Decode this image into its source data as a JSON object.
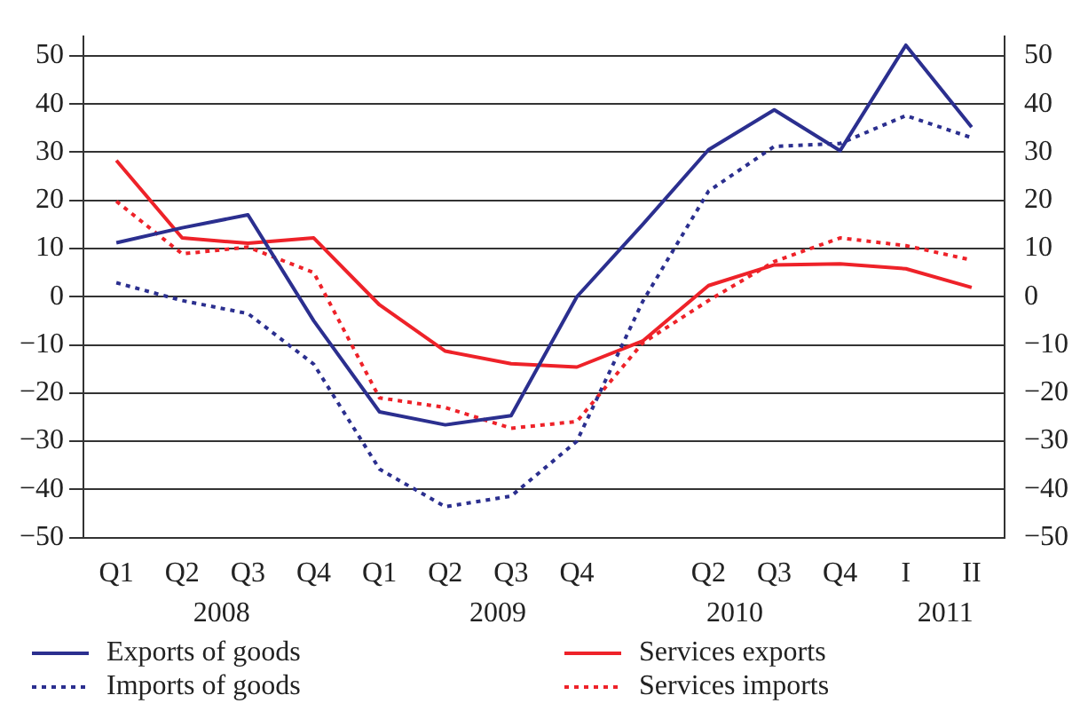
{
  "chart_data": {
    "type": "line",
    "categories": [
      "Q1",
      "Q2",
      "Q3",
      "Q4",
      "Q1",
      "Q2",
      "Q3",
      "Q4",
      null,
      "Q2",
      "Q3",
      "Q4",
      "I",
      "II"
    ],
    "series": [
      {
        "name": "Exports of goods",
        "color": "#2b2f8f",
        "line_style": "solid",
        "values": [
          11.2,
          14.3,
          17,
          -5,
          -23.9,
          -26.6,
          -24.7,
          0,
          15,
          30.5,
          38.8,
          30.3,
          52.2,
          35.2
        ]
      },
      {
        "name": "Imports of goods",
        "color": "#2b2f8f",
        "line_style": "dotted",
        "values": [
          2.9,
          -0.8,
          -3.5,
          -14,
          -35.8,
          -43.6,
          -41.4,
          -30,
          -1,
          21.9,
          31.2,
          31.8,
          37.6,
          33
        ]
      },
      {
        "name": "Services exports",
        "color": "#ee2229",
        "line_style": "solid",
        "values": [
          28.3,
          12.2,
          11.1,
          12.2,
          -1.7,
          -11.3,
          -13.9,
          -14.6,
          -9.2,
          2.3,
          6.6,
          6.8,
          5.8,
          1.9
        ]
      },
      {
        "name": "Services imports",
        "color": "#ee2229",
        "line_style": "dotted",
        "values": [
          19.8,
          8.9,
          10.3,
          5,
          -21,
          -23,
          -27.3,
          -25.9,
          -9.6,
          -0.8,
          7.3,
          12.2,
          10.6,
          7.6
        ]
      }
    ],
    "ylim": [
      -50,
      54
    ],
    "yticks": [
      -50,
      -40,
      -30,
      -20,
      -10,
      0,
      10,
      20,
      30,
      40,
      50
    ],
    "y2lim": [
      -50,
      54
    ],
    "y2ticks": [
      -50,
      -40,
      -30,
      -20,
      -10,
      0,
      10,
      20,
      30,
      40,
      50
    ],
    "grid": "y",
    "legend": "bottom",
    "marker": "none",
    "annotations": [
      "2008",
      "2009",
      "2010",
      "2011"
    ]
  }
}
